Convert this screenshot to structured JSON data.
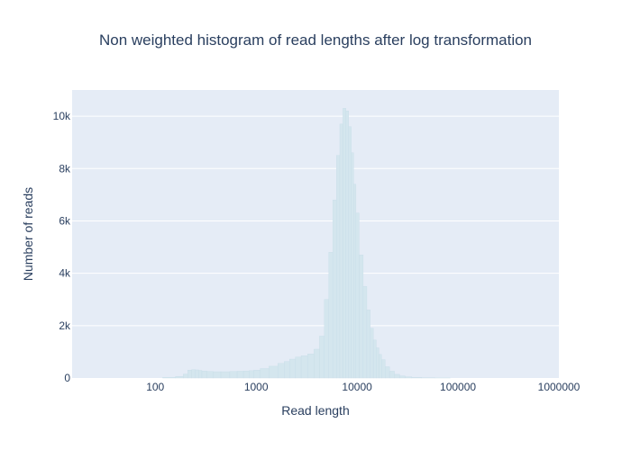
{
  "chart_data": {
    "type": "bar",
    "title": "Non weighted histogram of read lengths after log transformation",
    "xlabel": "Read length",
    "ylabel": "Number of reads",
    "x_scale": "log",
    "xlim": [
      15,
      1000000
    ],
    "ylim": [
      0,
      11000
    ],
    "x_ticks": [
      {
        "value": 100,
        "label": "100"
      },
      {
        "value": 1000,
        "label": "1000"
      },
      {
        "value": 10000,
        "label": "10000"
      },
      {
        "value": 100000,
        "label": "100000"
      },
      {
        "value": 1000000,
        "label": "1000000"
      }
    ],
    "y_ticks": [
      {
        "value": 0,
        "label": "0"
      },
      {
        "value": 2000,
        "label": "2k"
      },
      {
        "value": 4000,
        "label": "4k"
      },
      {
        "value": 6000,
        "label": "6k"
      },
      {
        "value": 8000,
        "label": "8k"
      },
      {
        "value": 10000,
        "label": "10k"
      }
    ],
    "grid": true,
    "colors": {
      "plot_bg": "#e5ecf6",
      "bar_fill": "#d4e6ee",
      "bar_edge": "#c7dde8",
      "grid": "#ffffff",
      "text": "#2a3f5f"
    },
    "series": [
      {
        "x": [
          100,
          140,
          180,
          200,
          220,
          240,
          260,
          280,
          300,
          350,
          400,
          500,
          600,
          700,
          800,
          900,
          1000,
          1200,
          1500,
          1800,
          2000,
          2300,
          2600,
          3000,
          3500,
          4000,
          4500,
          5000,
          5500,
          6000,
          6500,
          7000,
          7500,
          8000,
          8500,
          9000,
          9500,
          10000,
          11000,
          12000,
          13000,
          14000,
          15000,
          16000,
          17000,
          18000,
          20000,
          22000,
          25000,
          28000,
          32000,
          38000,
          50000,
          70000,
          100000
        ],
        "values": [
          0,
          20,
          60,
          150,
          300,
          320,
          310,
          290,
          270,
          250,
          240,
          240,
          250,
          260,
          270,
          280,
          300,
          360,
          450,
          560,
          630,
          720,
          800,
          850,
          920,
          1100,
          1600,
          3000,
          4800,
          6800,
          8500,
          9700,
          10300,
          10200,
          9600,
          8600,
          7400,
          6300,
          4700,
          3500,
          2600,
          1900,
          1450,
          1150,
          900,
          700,
          430,
          260,
          140,
          80,
          45,
          25,
          10,
          3,
          0
        ]
      }
    ]
  }
}
